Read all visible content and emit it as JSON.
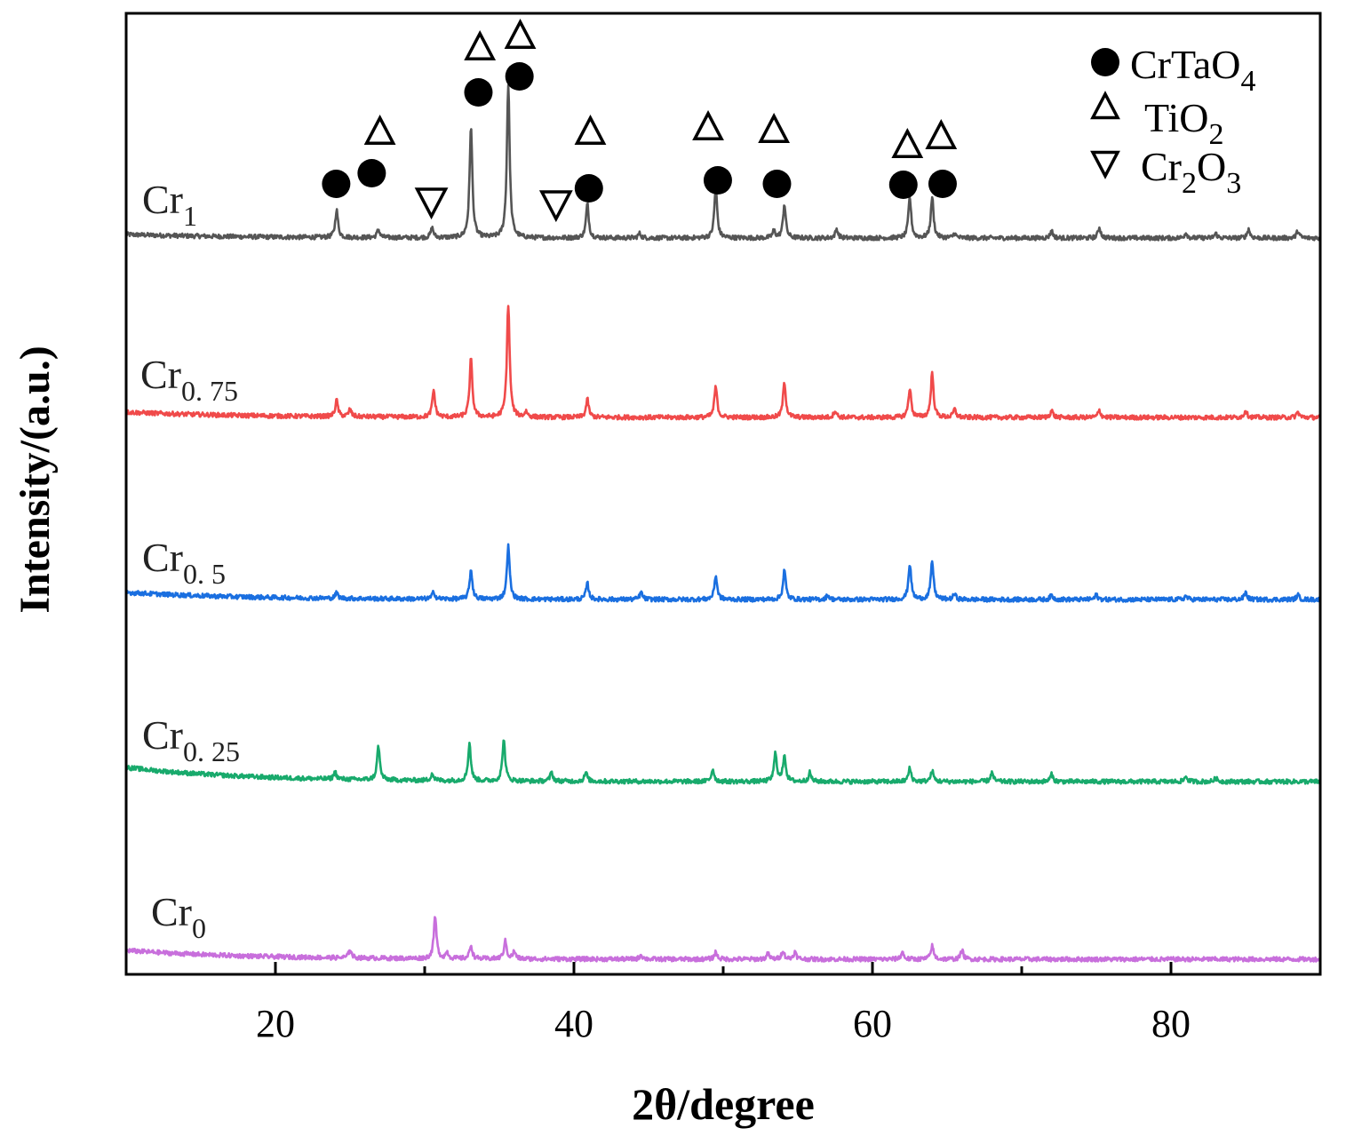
{
  "chart_data": {
    "type": "line",
    "title": "",
    "xlabel": "2θ/degree",
    "ylabel": "Intensity/(a.u.)",
    "xlim": [
      10,
      90
    ],
    "ylim": [
      0,
      1082
    ],
    "x_ticks": [
      20,
      40,
      60,
      80
    ],
    "x_minor_ticks": [
      30,
      50,
      70
    ],
    "grid": false,
    "legend_placement": "top-right",
    "legend": [
      {
        "symbol": "filled-circle",
        "main": "CrTaO",
        "sub": "4"
      },
      {
        "symbol": "triangle-up",
        "main": "TiO",
        "sub": "2"
      },
      {
        "symbol": "triangle-down",
        "main": "Cr",
        "sub": "2",
        "main2": "O",
        "sub2": "3"
      }
    ],
    "series": [
      {
        "name": "Cr1",
        "label_main": "Cr",
        "label_sub": "1",
        "color": "#555555",
        "baseline": 829,
        "low_angle_rise": 4,
        "peaks": [
          [
            24.1,
            31
          ],
          [
            26.9,
            9
          ],
          [
            30.5,
            11
          ],
          [
            33.1,
            125
          ],
          [
            35.6,
            173
          ],
          [
            40.9,
            38
          ],
          [
            44.4,
            5
          ],
          [
            49.5,
            58
          ],
          [
            53.4,
            8
          ],
          [
            54.1,
            38
          ],
          [
            57.6,
            10
          ],
          [
            62.5,
            46
          ],
          [
            64.0,
            46
          ],
          [
            65.5,
            5
          ],
          [
            72.0,
            8
          ],
          [
            75.2,
            12
          ],
          [
            81.0,
            6
          ],
          [
            83.0,
            5
          ],
          [
            85.2,
            10
          ],
          [
            88.5,
            8
          ]
        ]
      },
      {
        "name": "Cr0.75",
        "label_main": "Cr",
        "label_sub": "0. 75",
        "color": "#f04a4a",
        "baseline": 627,
        "low_angle_rise": 6,
        "peaks": [
          [
            24.1,
            18
          ],
          [
            25.0,
            8
          ],
          [
            30.6,
            30
          ],
          [
            33.1,
            65
          ],
          [
            35.6,
            127
          ],
          [
            36.8,
            6
          ],
          [
            40.9,
            20
          ],
          [
            49.5,
            35
          ],
          [
            54.1,
            40
          ],
          [
            57.5,
            8
          ],
          [
            62.5,
            33
          ],
          [
            64.0,
            50
          ],
          [
            65.5,
            9
          ],
          [
            72.0,
            8
          ],
          [
            75.2,
            8
          ],
          [
            85.0,
            8
          ],
          [
            88.5,
            6
          ]
        ]
      },
      {
        "name": "Cr0.5",
        "label_main": "Cr",
        "label_sub": "0. 5",
        "color": "#1a6fe0",
        "baseline": 422,
        "low_angle_rise": 8,
        "peaks": [
          [
            24.1,
            6
          ],
          [
            30.6,
            8
          ],
          [
            33.1,
            33
          ],
          [
            35.6,
            60
          ],
          [
            40.9,
            18
          ],
          [
            44.5,
            8
          ],
          [
            49.5,
            27
          ],
          [
            54.1,
            33
          ],
          [
            57.0,
            5
          ],
          [
            62.5,
            40
          ],
          [
            64.0,
            43
          ],
          [
            65.5,
            6
          ],
          [
            72.0,
            5
          ],
          [
            75.0,
            5
          ],
          [
            81.0,
            4
          ],
          [
            85.0,
            8
          ],
          [
            88.5,
            5
          ]
        ]
      },
      {
        "name": "Cr0.25",
        "label_main": "Cr",
        "label_sub": "0. 25",
        "color": "#18aa6c",
        "baseline": 217,
        "low_angle_rise": 16,
        "peaks": [
          [
            24.0,
            8
          ],
          [
            26.9,
            38
          ],
          [
            30.5,
            8
          ],
          [
            33.0,
            42
          ],
          [
            35.3,
            47
          ],
          [
            38.5,
            10
          ],
          [
            40.8,
            10
          ],
          [
            49.3,
            14
          ],
          [
            53.5,
            32
          ],
          [
            54.1,
            30
          ],
          [
            55.8,
            10
          ],
          [
            62.5,
            15
          ],
          [
            64.0,
            12
          ],
          [
            68.0,
            10
          ],
          [
            72.0,
            8
          ],
          [
            81.0,
            6
          ],
          [
            83.0,
            4
          ]
        ]
      },
      {
        "name": "Cr0",
        "label_main": "Cr",
        "label_sub": "0",
        "color": "#c86fdc",
        "baseline": 17,
        "low_angle_rise": 10,
        "peaks": [
          [
            25.0,
            10
          ],
          [
            30.7,
            47
          ],
          [
            31.5,
            7
          ],
          [
            33.1,
            15
          ],
          [
            35.4,
            20
          ],
          [
            36.0,
            8
          ],
          [
            44.5,
            5
          ],
          [
            49.5,
            8
          ],
          [
            53.0,
            6
          ],
          [
            54.0,
            10
          ],
          [
            54.8,
            8
          ],
          [
            62.0,
            8
          ],
          [
            64.0,
            15
          ],
          [
            66.0,
            10
          ]
        ]
      }
    ],
    "annotations": {
      "CrTaO4_circles": [
        [
          24.07,
          890
        ],
        [
          26.45,
          902
        ],
        [
          33.6,
          993
        ],
        [
          36.35,
          1011
        ],
        [
          41.0,
          885
        ],
        [
          49.64,
          894
        ],
        [
          53.6,
          890
        ],
        [
          62.07,
          889
        ],
        [
          64.7,
          890
        ]
      ],
      "TiO2_triangles_up": [
        [
          27.0,
          947
        ],
        [
          33.7,
          1042
        ],
        [
          36.4,
          1055
        ],
        [
          41.1,
          947
        ],
        [
          48.99,
          952
        ],
        [
          53.4,
          949
        ],
        [
          62.34,
          932
        ],
        [
          64.6,
          942
        ]
      ],
      "Cr2O3_triangles_down": [
        [
          30.45,
          872
        ],
        [
          38.8,
          869
        ]
      ]
    }
  }
}
